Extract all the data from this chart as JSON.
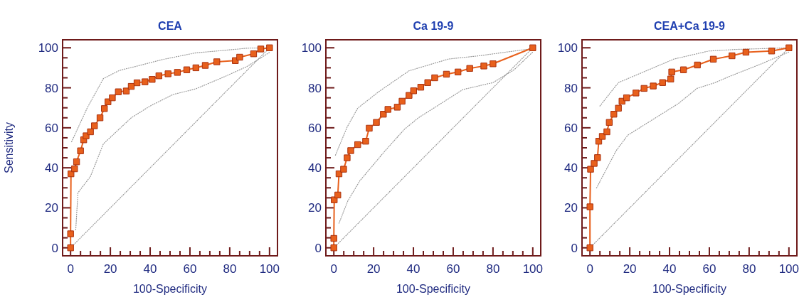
{
  "chart_data": [
    {
      "type": "line",
      "title": "CEA",
      "xlabel": "100-Specificity",
      "ylabel": "Sensitivity",
      "xlim": [
        -4,
        104
      ],
      "ylim": [
        -4,
        104
      ],
      "xticks": [
        0,
        {
          "value": 5,
          "label": null
        },
        {
          "value": 10,
          "label": null
        },
        {
          "value": 15,
          "label": null
        },
        20,
        {
          "value": 25,
          "label": null
        },
        {
          "value": 30,
          "label": null
        },
        {
          "value": 35,
          "label": null
        },
        40,
        {
          "value": 45,
          "label": null
        },
        {
          "value": 50,
          "label": null
        },
        {
          "value": 55,
          "label": null
        },
        60,
        {
          "value": 65,
          "label": null
        },
        {
          "value": 70,
          "label": null
        },
        {
          "value": 75,
          "label": null
        },
        80,
        {
          "value": 85,
          "label": null
        },
        {
          "value": 90,
          "label": null
        },
        {
          "value": 95,
          "label": null
        },
        100
      ],
      "yticks": [
        0,
        {
          "value": 5,
          "label": null
        },
        {
          "value": 10,
          "label": null
        },
        {
          "value": 15,
          "label": null
        },
        20,
        {
          "value": 25,
          "label": null
        },
        {
          "value": 30,
          "label": null
        },
        {
          "value": 35,
          "label": null
        },
        40,
        {
          "value": 45,
          "label": null
        },
        {
          "value": 50,
          "label": null
        },
        {
          "value": 55,
          "label": null
        },
        60,
        {
          "value": 65,
          "label": null
        },
        {
          "value": 70,
          "label": null
        },
        {
          "value": 75,
          "label": null
        },
        80,
        {
          "value": 85,
          "label": null
        },
        {
          "value": 90,
          "label": null
        },
        {
          "value": 95,
          "label": null
        },
        100
      ],
      "series": [
        {
          "color": "#999999",
          "marker": "none",
          "line_style": "dotted",
          "x": [
            0,
            100
          ],
          "values": [
            0,
            100
          ]
        },
        {
          "color": "#999999",
          "marker": "none",
          "line_style": "dotted",
          "x": [
            0.5,
            8.4,
            16.5,
            24.6,
            34,
            45.6,
            63,
            77,
            88.6,
            100
          ],
          "values": [
            53,
            70,
            84.6,
            88.7,
            91,
            94,
            97.5,
            98.7,
            99.8,
            100
          ]
        },
        {
          "color": "#999999",
          "marker": "none",
          "line_style": "dotted",
          "x": [
            2.6,
            3.7,
            10,
            16.5,
            30.5,
            39.8,
            51.4,
            63,
            77,
            88.6,
            100
          ],
          "values": [
            9,
            27.5,
            35.7,
            52,
            65,
            70.8,
            76.6,
            79.5,
            85.4,
            90.6,
            97.7
          ]
        },
        {
          "color": "#e8601c",
          "marker": "square",
          "line_style": "solid",
          "x": [
            0,
            0,
            0.2,
            2,
            3,
            5,
            6.6,
            7.8,
            10,
            12,
            14.8,
            17,
            18.8,
            21,
            24,
            28,
            30.5,
            33.4,
            37.4,
            41,
            44.4,
            49,
            53.7,
            58.4,
            63,
            67.7,
            73.5,
            82.8,
            85,
            92,
            95.6,
            100
          ],
          "values": [
            0,
            7,
            37,
            39.5,
            43,
            48.5,
            54,
            56,
            58,
            61,
            65,
            69.6,
            73,
            75,
            78,
            78.4,
            80.7,
            82.5,
            83,
            84.2,
            86,
            87,
            87.7,
            89,
            90,
            91.2,
            93,
            93.6,
            95.3,
            97,
            99.4,
            100
          ]
        }
      ]
    },
    {
      "type": "line",
      "title": "Ca 19-9",
      "xlabel": "100-Specificity",
      "xlim": [
        -4,
        104
      ],
      "ylim": [
        -4,
        104
      ],
      "xticks": [
        0,
        {
          "value": 5,
          "label": null
        },
        {
          "value": 10,
          "label": null
        },
        {
          "value": 15,
          "label": null
        },
        20,
        {
          "value": 25,
          "label": null
        },
        {
          "value": 30,
          "label": null
        },
        {
          "value": 35,
          "label": null
        },
        40,
        {
          "value": 45,
          "label": null
        },
        {
          "value": 50,
          "label": null
        },
        {
          "value": 55,
          "label": null
        },
        60,
        {
          "value": 65,
          "label": null
        },
        {
          "value": 70,
          "label": null
        },
        {
          "value": 75,
          "label": null
        },
        80,
        {
          "value": 85,
          "label": null
        },
        {
          "value": 90,
          "label": null
        },
        {
          "value": 95,
          "label": null
        },
        100
      ],
      "yticks": [
        0,
        {
          "value": 5,
          "label": null
        },
        {
          "value": 10,
          "label": null
        },
        {
          "value": 15,
          "label": null
        },
        20,
        {
          "value": 25,
          "label": null
        },
        {
          "value": 30,
          "label": null
        },
        {
          "value": 35,
          "label": null
        },
        40,
        {
          "value": 45,
          "label": null
        },
        {
          "value": 50,
          "label": null
        },
        {
          "value": 55,
          "label": null
        },
        60,
        {
          "value": 65,
          "label": null
        },
        {
          "value": 70,
          "label": null
        },
        {
          "value": 75,
          "label": null
        },
        80,
        {
          "value": 85,
          "label": null
        },
        {
          "value": 90,
          "label": null
        },
        {
          "value": 95,
          "label": null
        },
        100
      ],
      "series": [
        {
          "color": "#999999",
          "marker": "none",
          "line_style": "dotted",
          "x": [
            0,
            100
          ],
          "values": [
            0,
            100
          ]
        },
        {
          "color": "#999999",
          "marker": "none",
          "line_style": "dotted",
          "x": [
            0.8,
            6.7,
            12,
            22.5,
            37.8,
            57.7,
            73,
            87,
            100
          ],
          "values": [
            46.3,
            60.4,
            69.8,
            78,
            88.5,
            94.4,
            96,
            97.9,
            99.6
          ]
        },
        {
          "color": "#999999",
          "marker": "none",
          "line_style": "dotted",
          "x": [
            2.6,
            7,
            13,
            24.9,
            35.4,
            42.5,
            51.9,
            64.8,
            80,
            90.6,
            100
          ],
          "values": [
            12.3,
            23.4,
            33.4,
            47.5,
            59.2,
            65,
            70.9,
            79.1,
            82.6,
            89,
            97.9
          ]
        },
        {
          "color": "#e8601c",
          "marker": "square",
          "line_style": "solid",
          "x": [
            0,
            0,
            0.2,
            2,
            2.6,
            4.9,
            6.7,
            8.5,
            12,
            16,
            17.8,
            21.4,
            24.9,
            27.2,
            31.9,
            34.3,
            37.8,
            40.1,
            43.7,
            47.2,
            50.7,
            56.6,
            62.4,
            68.3,
            75.4,
            80,
            100
          ],
          "values": [
            0,
            4.7,
            24,
            26.4,
            37,
            39.3,
            45,
            48.6,
            51.6,
            53.3,
            59.8,
            62.7,
            66.8,
            69.2,
            70.3,
            73.3,
            76.2,
            78.5,
            80.3,
            82.6,
            85,
            86.8,
            87.9,
            89.7,
            90.9,
            92,
            100
          ]
        }
      ]
    },
    {
      "type": "line",
      "title": "CEA+Ca 19-9",
      "xlabel": "100-Specificity",
      "xlim": [
        -4,
        104
      ],
      "ylim": [
        -4,
        104
      ],
      "xticks": [
        0,
        {
          "value": 5,
          "label": null
        },
        {
          "value": 10,
          "label": null
        },
        {
          "value": 15,
          "label": null
        },
        20,
        {
          "value": 25,
          "label": null
        },
        {
          "value": 30,
          "label": null
        },
        {
          "value": 35,
          "label": null
        },
        40,
        {
          "value": 45,
          "label": null
        },
        {
          "value": 50,
          "label": null
        },
        {
          "value": 55,
          "label": null
        },
        60,
        {
          "value": 65,
          "label": null
        },
        {
          "value": 70,
          "label": null
        },
        {
          "value": 75,
          "label": null
        },
        80,
        {
          "value": 85,
          "label": null
        },
        {
          "value": 90,
          "label": null
        },
        {
          "value": 95,
          "label": null
        },
        100
      ],
      "yticks": [
        0,
        {
          "value": 5,
          "label": null
        },
        {
          "value": 10,
          "label": null
        },
        {
          "value": 15,
          "label": null
        },
        20,
        {
          "value": 25,
          "label": null
        },
        {
          "value": 30,
          "label": null
        },
        {
          "value": 35,
          "label": null
        },
        40,
        {
          "value": 45,
          "label": null
        },
        {
          "value": 50,
          "label": null
        },
        {
          "value": 55,
          "label": null
        },
        60,
        {
          "value": 65,
          "label": null
        },
        {
          "value": 70,
          "label": null
        },
        {
          "value": 75,
          "label": null
        },
        80,
        {
          "value": 85,
          "label": null
        },
        {
          "value": 90,
          "label": null
        },
        {
          "value": 95,
          "label": null
        },
        100
      ],
      "series": [
        {
          "color": "#999999",
          "marker": "none",
          "line_style": "dotted",
          "x": [
            0,
            100
          ],
          "values": [
            0,
            100
          ]
        },
        {
          "color": "#999999",
          "marker": "none",
          "line_style": "dotted",
          "x": [
            5,
            14.3,
            42.3,
            59.8,
            73.8,
            100
          ],
          "values": [
            70.9,
            82.6,
            94.4,
            98.4,
            99.2,
            100
          ]
        },
        {
          "color": "#999999",
          "marker": "none",
          "line_style": "dotted",
          "x": [
            3.3,
            13.2,
            19,
            44.4,
            53.8,
            62.9,
            69.9,
            86.2,
            100
          ],
          "values": [
            29.9,
            48.6,
            56.3,
            72.1,
            79.7,
            82.6,
            85.6,
            92,
            97.9
          ]
        },
        {
          "color": "#e8601c",
          "marker": "square",
          "line_style": "solid",
          "x": [
            0,
            0,
            0.3,
            2.1,
            3.8,
            4.4,
            6.2,
            8.5,
            9.7,
            12,
            14.3,
            16.1,
            18.4,
            23.1,
            27.2,
            31.8,
            36.5,
            40.6,
            41.1,
            47,
            54,
            62,
            71.4,
            78.4,
            91.3,
            100
          ],
          "values": [
            0,
            20.5,
            39.3,
            42.2,
            45.1,
            53.3,
            55.7,
            58,
            62.7,
            66.8,
            69.8,
            73.3,
            75,
            77.4,
            79.7,
            80.9,
            82.6,
            84.4,
            87.9,
            89,
            91.4,
            94.3,
            96,
            97.8,
            98.4,
            100
          ]
        }
      ]
    }
  ]
}
